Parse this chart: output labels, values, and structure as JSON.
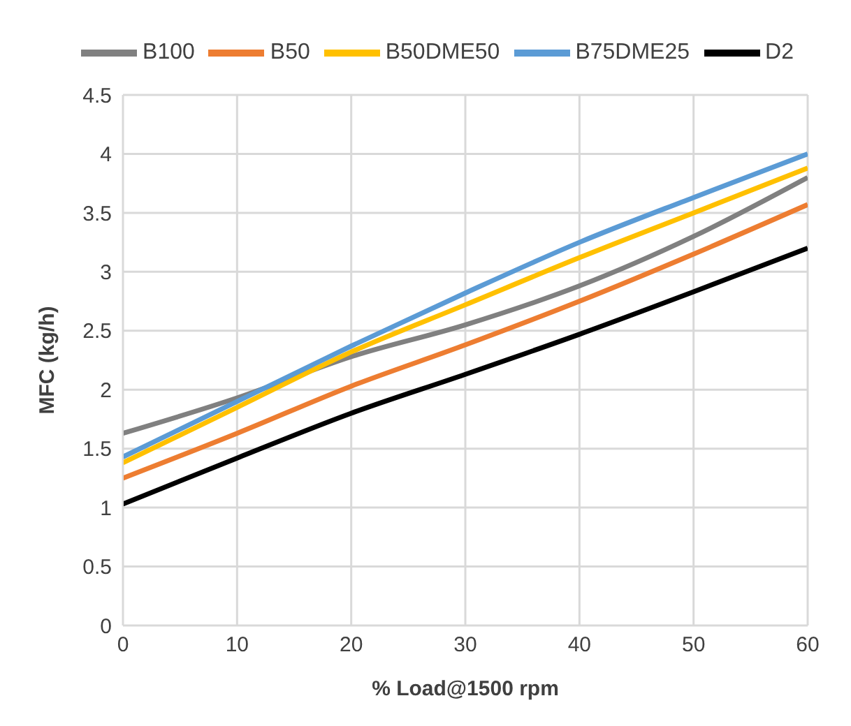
{
  "chart_data": {
    "type": "line",
    "xlabel": "% Load@1500 rpm",
    "ylabel": "MFC (kg/h)",
    "x": [
      0,
      10,
      20,
      30,
      40,
      50,
      60
    ],
    "series": [
      {
        "name": "D2",
        "color": "#000000",
        "values": [
          1.03,
          1.42,
          1.8,
          2.13,
          2.47,
          2.83,
          3.2
        ]
      },
      {
        "name": "B50",
        "color": "#ed7d31",
        "values": [
          1.25,
          1.63,
          2.03,
          2.38,
          2.75,
          3.15,
          3.57
        ]
      },
      {
        "name": "B100",
        "color": "#808080",
        "values": [
          1.63,
          1.93,
          2.28,
          2.55,
          2.88,
          3.3,
          3.8
        ]
      },
      {
        "name": "B50DME50",
        "color": "#ffc000",
        "values": [
          1.38,
          1.85,
          2.32,
          2.72,
          3.12,
          3.5,
          3.88
        ]
      },
      {
        "name": "B75DME25",
        "color": "#5b9bd5",
        "values": [
          1.43,
          1.9,
          2.37,
          2.82,
          3.25,
          3.63,
          4.0
        ]
      }
    ],
    "xlim": [
      0,
      60
    ],
    "xticks": [
      0,
      10,
      20,
      30,
      40,
      50,
      60
    ],
    "ylim": [
      0,
      4.5
    ],
    "yticks": [
      0,
      0.5,
      1,
      1.5,
      2,
      2.5,
      3,
      3.5,
      4,
      4.5
    ],
    "grid": true,
    "legend": "top",
    "marker": "none",
    "line_style": "solid"
  }
}
